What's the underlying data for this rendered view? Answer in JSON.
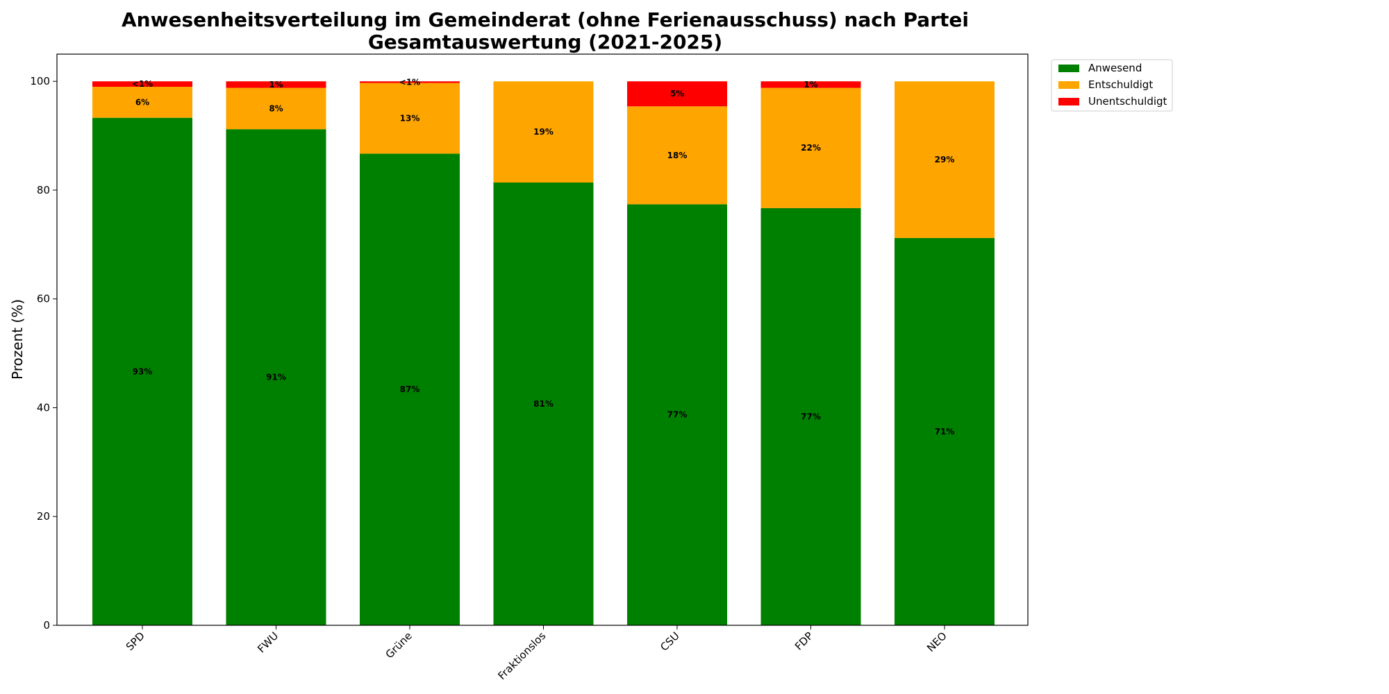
{
  "chart_data": {
    "type": "bar",
    "stacked": true,
    "title": "Anwesenheitsverteilung im Gemeinderat (ohne Ferienausschuss) nach Partei",
    "subtitle": "Gesamtauswertung (2021-2025)",
    "xlabel": "",
    "ylabel": "Prozent (%)",
    "ylim": [
      0,
      105
    ],
    "yticks": [
      0,
      20,
      40,
      60,
      80,
      100
    ],
    "grid": false,
    "legend_position": "outside-top-right",
    "categories": [
      "SPD",
      "FWU",
      "Grüne",
      "Fraktionslos",
      "CSU",
      "FDP",
      "NEO"
    ],
    "series": [
      {
        "name": "Anwesend",
        "color": "#008000",
        "values": [
          93.3,
          91.2,
          86.7,
          81.4,
          77.4,
          76.7,
          71.2
        ],
        "labels": [
          "93%",
          "91%",
          "87%",
          "81%",
          "77%",
          "77%",
          "71%"
        ]
      },
      {
        "name": "Entschuldigt",
        "color": "#FFA500",
        "values": [
          5.7,
          7.6,
          13.0,
          18.6,
          18.0,
          22.1,
          28.8
        ],
        "labels": [
          "6%",
          "8%",
          "13%",
          "19%",
          "18%",
          "22%",
          "29%"
        ]
      },
      {
        "name": "Unentschuldigt",
        "color": "#FF0000",
        "values": [
          1.0,
          1.2,
          0.3,
          0.0,
          4.6,
          1.2,
          0.0
        ],
        "labels": [
          "<1%",
          "1%",
          "<1%",
          "",
          "5%",
          "1%",
          ""
        ]
      }
    ]
  }
}
